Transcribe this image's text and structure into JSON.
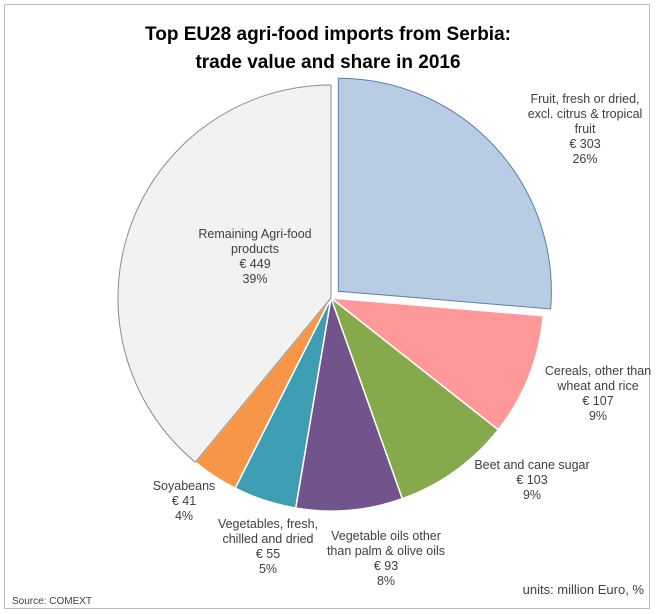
{
  "chart_data": {
    "type": "pie",
    "title": "Top EU28 agri-food imports from Serbia:",
    "subtitle": "trade value and share in 2016",
    "units_note": "units: million Euro, %",
    "source": "Source: COMEXT",
    "slices": [
      {
        "label": [
          "Fruit, fresh or dried,",
          "excl. citrus & tropical",
          "fruit"
        ],
        "value_text": "€ 303",
        "share_text": "26%",
        "value": 303,
        "color": "#b8cce4",
        "exploded": true
      },
      {
        "label": [
          "Cereals, other than",
          "wheat and rice"
        ],
        "value_text": "€ 107",
        "share_text": "9%",
        "value": 107,
        "color": "#ff9999",
        "exploded": false
      },
      {
        "label": [
          "Beet and cane sugar"
        ],
        "value_text": "€ 103",
        "share_text": "9%",
        "value": 103,
        "color": "#86a94c",
        "exploded": false
      },
      {
        "label": [
          "Vegetable oils other",
          "than palm & olive oils"
        ],
        "value_text": "€ 93",
        "share_text": "8%",
        "value": 93,
        "color": "#70548b",
        "exploded": false
      },
      {
        "label": [
          "Vegetables, fresh,",
          "chilled and dried"
        ],
        "value_text": "€ 55",
        "share_text": "5%",
        "value": 55,
        "color": "#3d9db3",
        "exploded": false
      },
      {
        "label": [
          "Soyabeans"
        ],
        "value_text": "€ 41",
        "share_text": "4%",
        "value": 41,
        "color": "#f79646",
        "exploded": false
      },
      {
        "label": [
          "Remaining Agri-food",
          "products"
        ],
        "value_text": "€ 449",
        "share_text": "39%",
        "value": 449,
        "color": "#f2f2f2",
        "exploded": false
      }
    ]
  }
}
